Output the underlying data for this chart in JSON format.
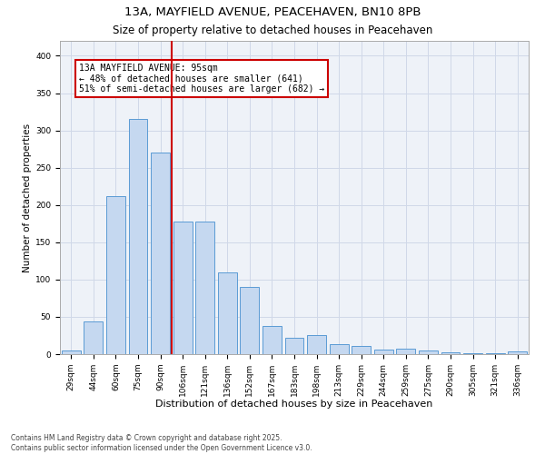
{
  "title1": "13A, MAYFIELD AVENUE, PEACEHAVEN, BN10 8PB",
  "title2": "Size of property relative to detached houses in Peacehaven",
  "xlabel": "Distribution of detached houses by size in Peacehaven",
  "ylabel": "Number of detached properties",
  "categories": [
    "29sqm",
    "44sqm",
    "60sqm",
    "75sqm",
    "90sqm",
    "106sqm",
    "121sqm",
    "136sqm",
    "152sqm",
    "167sqm",
    "183sqm",
    "198sqm",
    "213sqm",
    "229sqm",
    "244sqm",
    "259sqm",
    "275sqm",
    "290sqm",
    "305sqm",
    "321sqm",
    "336sqm"
  ],
  "values": [
    5,
    44,
    212,
    315,
    270,
    178,
    178,
    110,
    90,
    38,
    22,
    25,
    14,
    11,
    6,
    7,
    5,
    2,
    1,
    1,
    4
  ],
  "bar_color": "#c5d8f0",
  "bar_edge_color": "#5b9bd5",
  "vline_x": 4.5,
  "vline_label": "13A MAYFIELD AVENUE: 95sqm",
  "pct_smaller": "48% of detached houses are smaller (641)",
  "pct_larger": "51% of semi-detached houses are larger (682)",
  "annotation_box_color": "#ffffff",
  "annotation_box_edge": "#cc0000",
  "vline_color": "#cc0000",
  "ylim": [
    0,
    420
  ],
  "yticks": [
    0,
    50,
    100,
    150,
    200,
    250,
    300,
    350,
    400
  ],
  "grid_color": "#d0d8e8",
  "bg_color": "#eef2f8",
  "footer": "Contains HM Land Registry data © Crown copyright and database right 2025.\nContains public sector information licensed under the Open Government Licence v3.0.",
  "title1_fontsize": 9.5,
  "title2_fontsize": 8.5,
  "xlabel_fontsize": 8,
  "ylabel_fontsize": 7.5,
  "tick_fontsize": 6.5,
  "annotation_fontsize": 7,
  "footer_fontsize": 5.5
}
